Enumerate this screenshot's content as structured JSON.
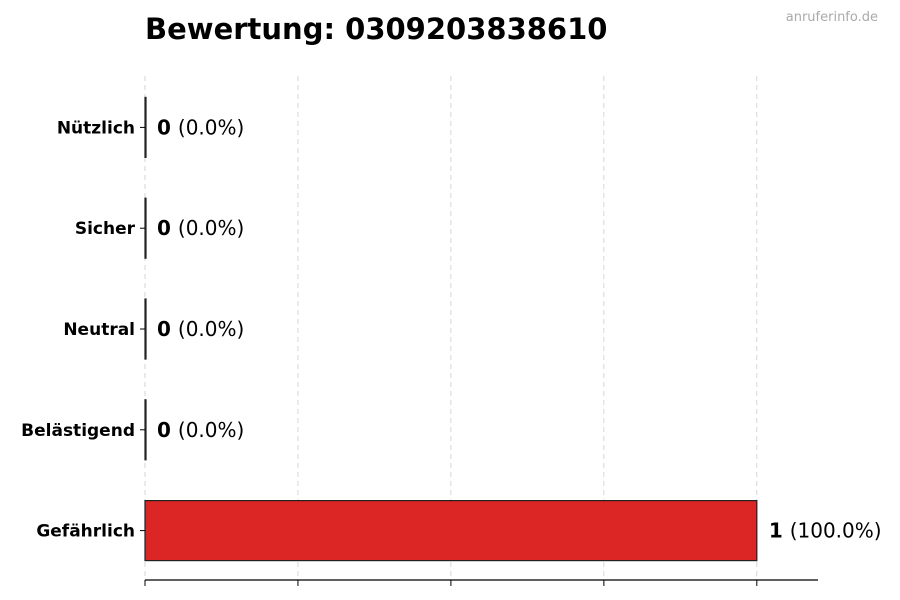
{
  "title": "Bewertung: 0309203838610",
  "watermark": "anruferinfo.de",
  "chart_data": {
    "type": "bar",
    "orientation": "horizontal",
    "title": "Bewertung: 0309203838610",
    "categories": [
      "Nützlich",
      "Sicher",
      "Neutral",
      "Belästigend",
      "Gefährlich"
    ],
    "values": [
      0,
      0,
      0,
      0,
      1
    ],
    "labels": [
      "(0.0%)",
      "(0.0%)",
      "(0.0%)",
      "(0.0%)",
      "(100.0%)"
    ],
    "colors": [
      "#2e7d32",
      "#4caf50",
      "#9e9e9e",
      "#ff9800",
      "#dc2626"
    ],
    "xlim": [
      0,
      1.1
    ],
    "grid": "x-dashed",
    "xlabel": "",
    "ylabel": ""
  }
}
